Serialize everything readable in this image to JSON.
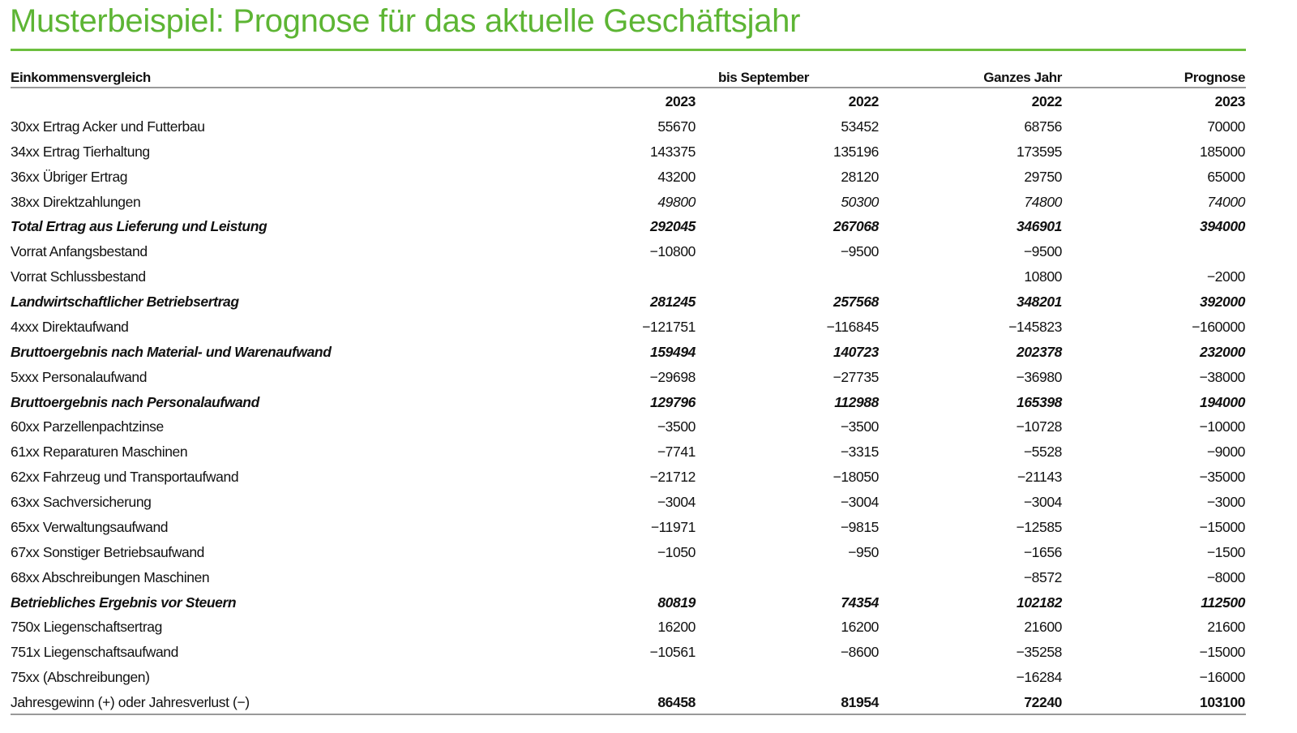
{
  "title": "Musterbeispiel: Prognose für das aktuelle Geschäftsjahr",
  "colors": {
    "title": "#5db534",
    "rule": "#6cbf3f"
  },
  "header": {
    "label": "Einkommensvergleich",
    "group1": "bis September",
    "group2": "Ganzes Jahr",
    "group3": "Prognose",
    "years": [
      "2023",
      "2022",
      "2022",
      "2023"
    ]
  },
  "rows": [
    {
      "label": "30xx Ertrag Acker und Futterbau",
      "style": "normal",
      "values": [
        "55670",
        "53452",
        "68756",
        "70000"
      ]
    },
    {
      "label": "34xx Ertrag Tierhaltung",
      "style": "normal",
      "values": [
        "143375",
        "135196",
        "173595",
        "185000"
      ]
    },
    {
      "label": "36xx Übriger Ertrag",
      "style": "normal",
      "values": [
        "43200",
        "28120",
        "29750",
        "65000"
      ]
    },
    {
      "label": "38xx Direktzahlungen",
      "style": "italic-values",
      "values": [
        "49800",
        "50300",
        "74800",
        "74000"
      ]
    },
    {
      "label": "Total Ertrag aus Lieferung und Leistung",
      "style": "bold-italic",
      "values": [
        "292045",
        "267068",
        "346901",
        "394000"
      ]
    },
    {
      "label": "Vorrat Anfangsbestand",
      "style": "normal",
      "values": [
        "−10800",
        "−9500",
        "−9500",
        ""
      ]
    },
    {
      "label": "Vorrat Schlussbestand",
      "style": "normal",
      "values": [
        "",
        "",
        "10800",
        "−2000"
      ]
    },
    {
      "label": "Landwirtschaftlicher Betriebsertrag",
      "style": "bold-italic",
      "values": [
        "281245",
        "257568",
        "348201",
        "392000"
      ]
    },
    {
      "label": "4xxx Direktaufwand",
      "style": "normal",
      "values": [
        "−121751",
        "−116845",
        "−145823",
        "−160000"
      ]
    },
    {
      "label": "Bruttoergebnis nach Material- und Warenaufwand",
      "style": "bold-italic",
      "values": [
        "159494",
        "140723",
        "202378",
        "232000"
      ]
    },
    {
      "label": "5xxx Personalaufwand",
      "style": "normal",
      "values": [
        "−29698",
        "−27735",
        "−36980",
        "−38000"
      ]
    },
    {
      "label": "Bruttoergebnis nach Personalaufwand",
      "style": "bold-italic",
      "values": [
        "129796",
        "112988",
        "165398",
        "194000"
      ]
    },
    {
      "label": "60xx Parzellenpachtzinse",
      "style": "normal",
      "values": [
        "−3500",
        "−3500",
        "−10728",
        "−10000"
      ]
    },
    {
      "label": "61xx Reparaturen Maschinen",
      "style": "normal",
      "values": [
        "−7741",
        "−3315",
        "−5528",
        "−9000"
      ]
    },
    {
      "label": "62xx Fahrzeug und Transportaufwand",
      "style": "normal",
      "values": [
        "−21712",
        "−18050",
        "−21143",
        "−35000"
      ]
    },
    {
      "label": "63xx Sachversicherung",
      "style": "normal",
      "values": [
        "−3004",
        "−3004",
        "−3004",
        "−3000"
      ]
    },
    {
      "label": "65xx Verwaltungsaufwand",
      "style": "normal",
      "values": [
        "−11971",
        "−9815",
        "−12585",
        "−15000"
      ]
    },
    {
      "label": "67xx Sonstiger Betriebsaufwand",
      "style": "normal",
      "values": [
        "−1050",
        "−950",
        "−1656",
        "−1500"
      ]
    },
    {
      "label": "68xx Abschreibungen Maschinen",
      "style": "normal",
      "values": [
        "",
        "",
        "−8572",
        "−8000"
      ]
    },
    {
      "label": "Betriebliches Ergebnis vor Steuern",
      "style": "bold-italic",
      "values": [
        "80819",
        "74354",
        "102182",
        "112500"
      ]
    },
    {
      "label": "750x Liegenschaftsertrag",
      "style": "normal",
      "values": [
        "16200",
        "16200",
        "21600",
        "21600"
      ]
    },
    {
      "label": "751x Liegenschaftsaufwand",
      "style": "normal",
      "values": [
        "−10561",
        "−8600",
        "−35258",
        "−15000"
      ]
    },
    {
      "label": "75xx (Abschreibungen)",
      "style": "normal",
      "values": [
        "",
        "",
        "−16284",
        "−16000"
      ]
    },
    {
      "label": "Jahresgewinn (+) oder Jahresverlust (−)",
      "style": "bold-values",
      "values": [
        "86458",
        "81954",
        "72240",
        "103100"
      ]
    }
  ]
}
